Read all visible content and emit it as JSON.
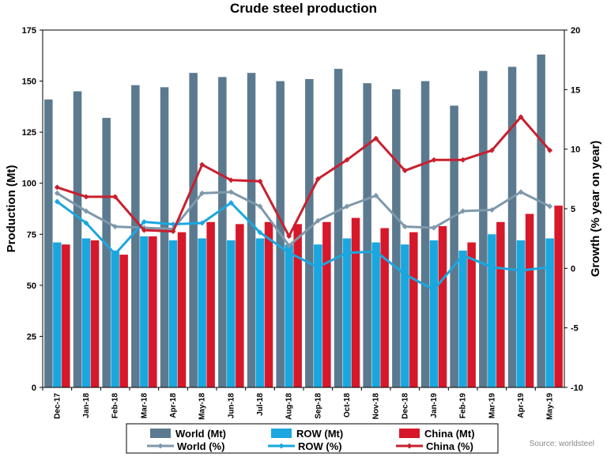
{
  "chart_data": {
    "type": "bar+line",
    "title": "Crude steel production",
    "ylabel_left": "Production (Mt)",
    "ylabel_right": "Growth (% year on year)",
    "ylim_left": [
      0,
      175
    ],
    "ylim_right": [
      -10,
      20
    ],
    "yticks_left": [
      "0",
      "25",
      "50",
      "75",
      "100",
      "125",
      "150",
      "175"
    ],
    "yticks_right": [
      "-10",
      "-5",
      "0",
      "5",
      "10",
      "15",
      "20"
    ],
    "categories": [
      "Dec-17",
      "Jan-18",
      "Feb-18",
      "Mar-18",
      "Apr-18",
      "May-18",
      "Jun-18",
      "Jul-18",
      "Aug-18",
      "Sep-18",
      "Oct-18",
      "Nov-18",
      "Dec-18",
      "Jan-19",
      "Feb-19",
      "Mar-19",
      "Apr-19",
      "May-19"
    ],
    "bar_series": [
      {
        "name": "World (Mt)",
        "color": "#5b7a8f",
        "values": [
          141,
          145,
          132,
          148,
          147,
          154,
          152,
          154,
          150,
          151,
          156,
          149,
          146,
          150,
          138,
          155,
          157,
          163
        ]
      },
      {
        "name": "ROW (Mt)",
        "color": "#1aa7df",
        "values": [
          71,
          73,
          67,
          74,
          72,
          73,
          72,
          73,
          70,
          70,
          73,
          71,
          70,
          72,
          67,
          75,
          72,
          73
        ]
      },
      {
        "name": "China (Mt)",
        "color": "#d7182a",
        "values": [
          70,
          72,
          65,
          74,
          76,
          81,
          80,
          81,
          80,
          81,
          83,
          78,
          76,
          79,
          71,
          81,
          85,
          89
        ]
      }
    ],
    "line_series": [
      {
        "name": "World (%)",
        "color": "#7e98ab",
        "values": [
          6.3,
          4.8,
          3.5,
          3.4,
          3.3,
          6.3,
          6.4,
          5.2,
          1.9,
          4.0,
          5.2,
          6.1,
          3.5,
          3.4,
          4.8,
          4.9,
          6.4,
          5.2
        ]
      },
      {
        "name": "ROW (%)",
        "color": "#1aa7df",
        "values": [
          5.6,
          3.8,
          1.2,
          3.9,
          3.7,
          3.8,
          5.5,
          3.0,
          1.3,
          0.1,
          1.3,
          1.4,
          -0.5,
          -1.8,
          1.1,
          0.1,
          -0.2,
          0.1
        ]
      },
      {
        "name": "China (%)",
        "color": "#c8202e",
        "values": [
          6.8,
          6.0,
          6.0,
          3.2,
          3.1,
          8.7,
          7.4,
          7.3,
          2.7,
          7.5,
          9.1,
          10.9,
          8.2,
          9.1,
          9.1,
          9.9,
          12.7,
          9.9
        ]
      }
    ],
    "legend_position": "bottom",
    "grid": false,
    "source": "Source: worldsteel"
  }
}
